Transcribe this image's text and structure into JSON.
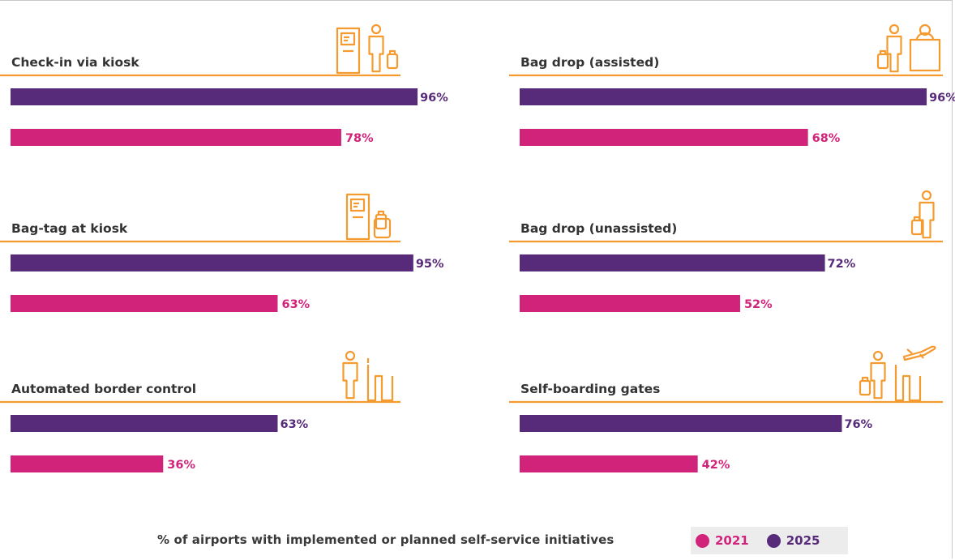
{
  "colors": {
    "accent_line": "#F49A2E",
    "icon_stroke": "#F49A2E",
    "series_2025": "#572A7A",
    "series_2021": "#D2237B",
    "label_2025": "#572A7A",
    "label_2021": "#D2237B",
    "category_text": "#333333"
  },
  "chart_data": {
    "type": "bar",
    "orientation": "horizontal",
    "value_unit": "%",
    "xlim": [
      0,
      100
    ],
    "series_names": [
      "2025",
      "2021"
    ],
    "panels": [
      {
        "category": "Check-in via kiosk",
        "icon": "kiosk-passenger-luggage-icon",
        "values": {
          "2025": 96,
          "2021": 78
        },
        "labels": {
          "2025": "96%",
          "2021": "78%"
        }
      },
      {
        "category": "Bag drop (assisted)",
        "icon": "passenger-luggage-counter-agent-icon",
        "values": {
          "2025": 96,
          "2021": 68
        },
        "labels": {
          "2025": "96%",
          "2021": "68%"
        }
      },
      {
        "category": "Bag-tag at kiosk",
        "icon": "kiosk-luggage-tag-icon",
        "values": {
          "2025": 95,
          "2021": 63
        },
        "labels": {
          "2025": "95%",
          "2021": "63%"
        }
      },
      {
        "category": "Bag drop (unassisted)",
        "icon": "passenger-luggage-icon",
        "values": {
          "2025": 72,
          "2021": 52
        },
        "labels": {
          "2025": "72%",
          "2021": "52%"
        }
      },
      {
        "category": "Automated border control",
        "icon": "passenger-e-gate-icon",
        "values": {
          "2025": 63,
          "2021": 36
        },
        "labels": {
          "2025": "63%",
          "2021": "36%"
        }
      },
      {
        "category": "Self-boarding gates",
        "icon": "passenger-gate-airplane-icon",
        "values": {
          "2025": 76,
          "2021": 42
        },
        "labels": {
          "2025": "76%",
          "2021": "42%"
        }
      }
    ]
  },
  "footer": {
    "caption": "% of airports with implemented or planned self-service initiatives",
    "legend": [
      {
        "label": "2021",
        "color": "#D2237B"
      },
      {
        "label": "2025",
        "color": "#572A7A"
      }
    ]
  }
}
